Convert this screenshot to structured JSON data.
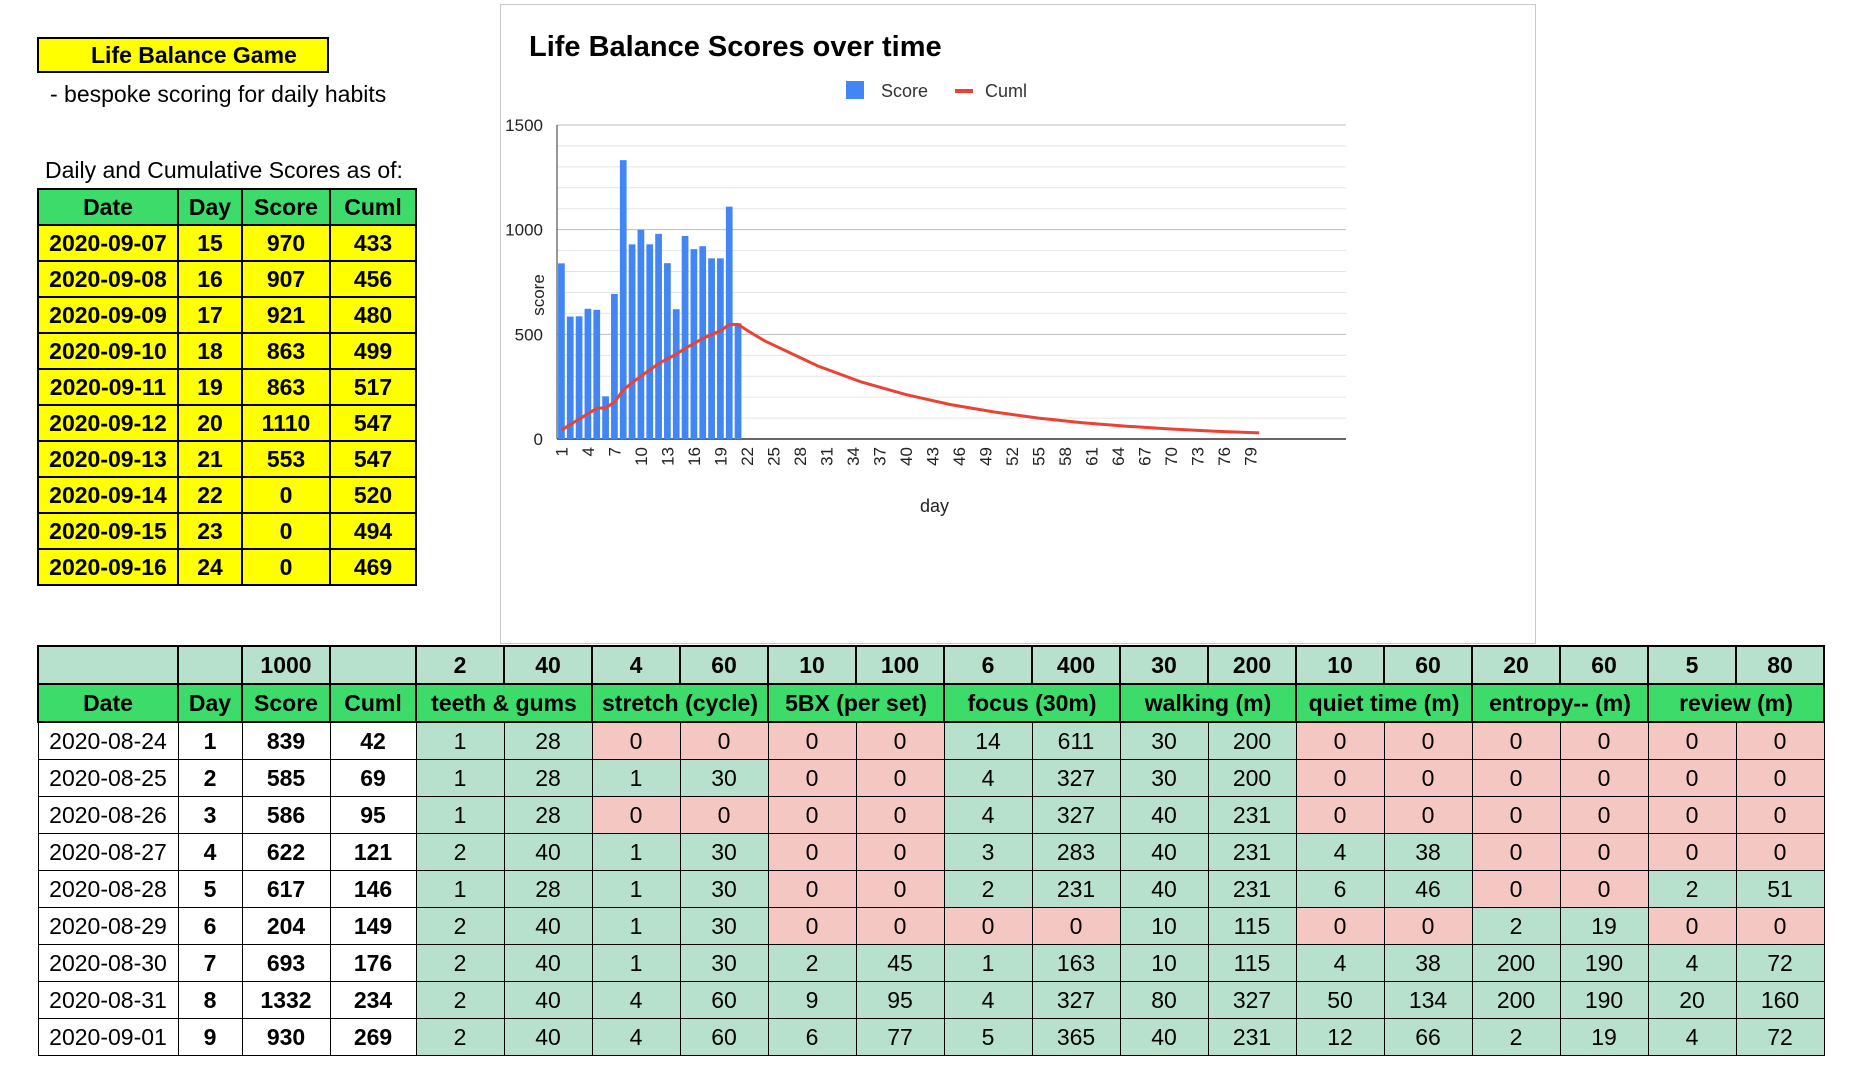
{
  "header": {
    "title": "Life Balance Game",
    "subtitle": "- bespoke scoring for daily habits",
    "asof_label": "Daily and Cumulative Scores as of:"
  },
  "summary": {
    "columns": [
      "Date",
      "Day",
      "Score",
      "Cuml"
    ],
    "rows": [
      [
        "2020-09-07",
        "15",
        "970",
        "433"
      ],
      [
        "2020-09-08",
        "16",
        "907",
        "456"
      ],
      [
        "2020-09-09",
        "17",
        "921",
        "480"
      ],
      [
        "2020-09-10",
        "18",
        "863",
        "499"
      ],
      [
        "2020-09-11",
        "19",
        "863",
        "517"
      ],
      [
        "2020-09-12",
        "20",
        "1110",
        "547"
      ],
      [
        "2020-09-13",
        "21",
        "553",
        "547"
      ],
      [
        "2020-09-14",
        "22",
        "0",
        "520"
      ],
      [
        "2020-09-15",
        "23",
        "0",
        "494"
      ],
      [
        "2020-09-16",
        "24",
        "0",
        "469"
      ]
    ]
  },
  "colors": {
    "bar": "#4285f4",
    "line": "#ea4335",
    "green_header": "#3ddc6a",
    "cell_good": "#b7e1cd",
    "cell_bad": "#f4c7c3",
    "highlight": "#ffff00"
  },
  "chart_data": {
    "type": "bar",
    "title": "Life Balance Scores over time",
    "xlabel": "day",
    "ylabel": "score",
    "ylim": [
      0,
      1500
    ],
    "yticks": [
      "0",
      "500",
      "1000",
      "1500"
    ],
    "xticks": [
      "1",
      "4",
      "7",
      "10",
      "13",
      "16",
      "19",
      "22",
      "25",
      "28",
      "31",
      "34",
      "37",
      "40",
      "43",
      "46",
      "49",
      "52",
      "55",
      "58",
      "61",
      "64",
      "67",
      "70",
      "73",
      "76",
      "79"
    ],
    "legend_position": "top",
    "grid": true,
    "x_range": [
      1,
      81
    ],
    "series": [
      {
        "name": "Score",
        "type": "bar",
        "x": [
          1,
          2,
          3,
          4,
          5,
          6,
          7,
          8,
          9,
          10,
          11,
          12,
          13,
          14,
          15,
          16,
          17,
          18,
          19,
          20,
          21
        ],
        "values": [
          839,
          585,
          586,
          622,
          617,
          204,
          693,
          1332,
          930,
          1000,
          930,
          980,
          840,
          620,
          970,
          907,
          921,
          863,
          863,
          1110,
          553
        ]
      },
      {
        "name": "Cuml",
        "type": "line",
        "x": [
          1,
          2,
          3,
          4,
          5,
          6,
          7,
          8,
          9,
          10,
          11,
          12,
          13,
          14,
          15,
          16,
          17,
          18,
          19,
          20,
          21,
          22,
          23,
          24,
          30,
          35,
          40,
          45,
          50,
          55,
          60,
          65,
          70,
          75,
          80
        ],
        "values": [
          42,
          69,
          95,
          121,
          146,
          149,
          176,
          234,
          269,
          300,
          330,
          360,
          383,
          405,
          433,
          456,
          480,
          499,
          517,
          547,
          547,
          520,
          494,
          469,
          349,
          272,
          212,
          165,
          129,
          100,
          78,
          61,
          48,
          37,
          29
        ]
      }
    ]
  },
  "main": {
    "weights_row": [
      "",
      "",
      "1000",
      "",
      "2",
      "40",
      "4",
      "60",
      "10",
      "100",
      "6",
      "400",
      "30",
      "200",
      "10",
      "60",
      "20",
      "60",
      "5",
      "80"
    ],
    "category_row": [
      {
        "label": "Date",
        "span": 1
      },
      {
        "label": "Day",
        "span": 1
      },
      {
        "label": "Score",
        "span": 1
      },
      {
        "label": "Cuml",
        "span": 1
      },
      {
        "label": "teeth & gums",
        "span": 2
      },
      {
        "label": "stretch (cycle)",
        "span": 2
      },
      {
        "label": "5BX (per set)",
        "span": 2
      },
      {
        "label": "focus (30m)",
        "span": 2
      },
      {
        "label": "walking (m)",
        "span": 2
      },
      {
        "label": "quiet time (m)",
        "span": 2
      },
      {
        "label": "entropy-- (m)",
        "span": 2
      },
      {
        "label": "review (m)",
        "span": 2
      }
    ],
    "rows": [
      {
        "cells": [
          "2020-08-24",
          "1",
          "839",
          "42",
          "1",
          "28",
          "0",
          "0",
          "0",
          "0",
          "14",
          "611",
          "30",
          "200",
          "0",
          "0",
          "0",
          "0",
          "0",
          "0"
        ],
        "status": [
          "g",
          "r",
          "r",
          "g",
          "g",
          "r",
          "r",
          "r"
        ]
      },
      {
        "cells": [
          "2020-08-25",
          "2",
          "585",
          "69",
          "1",
          "28",
          "1",
          "30",
          "0",
          "0",
          "4",
          "327",
          "30",
          "200",
          "0",
          "0",
          "0",
          "0",
          "0",
          "0"
        ],
        "status": [
          "g",
          "g",
          "r",
          "g",
          "g",
          "r",
          "r",
          "r"
        ]
      },
      {
        "cells": [
          "2020-08-26",
          "3",
          "586",
          "95",
          "1",
          "28",
          "0",
          "0",
          "0",
          "0",
          "4",
          "327",
          "40",
          "231",
          "0",
          "0",
          "0",
          "0",
          "0",
          "0"
        ],
        "status": [
          "g",
          "r",
          "r",
          "g",
          "g",
          "r",
          "r",
          "r"
        ]
      },
      {
        "cells": [
          "2020-08-27",
          "4",
          "622",
          "121",
          "2",
          "40",
          "1",
          "30",
          "0",
          "0",
          "3",
          "283",
          "40",
          "231",
          "4",
          "38",
          "0",
          "0",
          "0",
          "0"
        ],
        "status": [
          "g",
          "g",
          "r",
          "g",
          "g",
          "g",
          "r",
          "r"
        ]
      },
      {
        "cells": [
          "2020-08-28",
          "5",
          "617",
          "146",
          "1",
          "28",
          "1",
          "30",
          "0",
          "0",
          "2",
          "231",
          "40",
          "231",
          "6",
          "46",
          "0",
          "0",
          "2",
          "51"
        ],
        "status": [
          "g",
          "g",
          "r",
          "g",
          "g",
          "g",
          "r",
          "g"
        ]
      },
      {
        "cells": [
          "2020-08-29",
          "6",
          "204",
          "149",
          "2",
          "40",
          "1",
          "30",
          "0",
          "0",
          "0",
          "0",
          "10",
          "115",
          "0",
          "0",
          "2",
          "19",
          "0",
          "0"
        ],
        "status": [
          "g",
          "g",
          "r",
          "r",
          "g",
          "r",
          "g",
          "r"
        ]
      },
      {
        "cells": [
          "2020-08-30",
          "7",
          "693",
          "176",
          "2",
          "40",
          "1",
          "30",
          "2",
          "45",
          "1",
          "163",
          "10",
          "115",
          "4",
          "38",
          "200",
          "190",
          "4",
          "72"
        ],
        "status": [
          "g",
          "g",
          "g",
          "g",
          "g",
          "g",
          "g",
          "g"
        ]
      },
      {
        "cells": [
          "2020-08-31",
          "8",
          "1332",
          "234",
          "2",
          "40",
          "4",
          "60",
          "9",
          "95",
          "4",
          "327",
          "80",
          "327",
          "50",
          "134",
          "200",
          "190",
          "20",
          "160"
        ],
        "status": [
          "g",
          "g",
          "g",
          "g",
          "g",
          "g",
          "g",
          "g"
        ]
      },
      {
        "cells": [
          "2020-09-01",
          "9",
          "930",
          "269",
          "2",
          "40",
          "4",
          "60",
          "6",
          "77",
          "5",
          "365",
          "40",
          "231",
          "12",
          "66",
          "2",
          "19",
          "4",
          "72"
        ],
        "status": [
          "g",
          "g",
          "g",
          "g",
          "g",
          "g",
          "g",
          "g"
        ]
      }
    ]
  }
}
